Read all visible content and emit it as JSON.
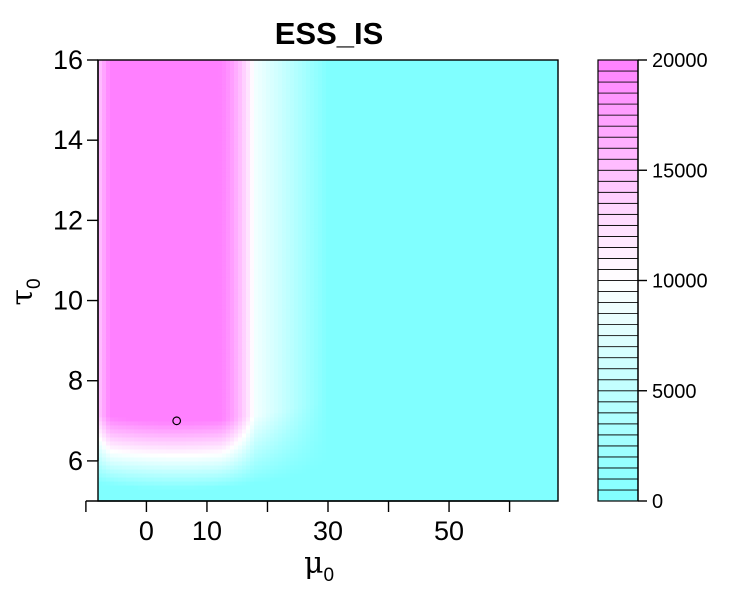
{
  "chart_data": {
    "type": "heatmap",
    "title": "ESS_IS",
    "xlabel": {
      "symbol": "μ",
      "subscript": "0"
    },
    "ylabel": {
      "symbol": "τ",
      "subscript": "0"
    },
    "xlim": [
      -8,
      68
    ],
    "ylim": [
      5,
      16
    ],
    "x_ticks": [
      -10,
      0,
      10,
      20,
      30,
      40,
      50,
      60
    ],
    "x_tick_labels": [
      "",
      "0",
      "10",
      "",
      "30",
      "",
      "50",
      ""
    ],
    "y_ticks": [
      6,
      8,
      10,
      12,
      14,
      16
    ],
    "y_tick_labels": [
      "6",
      "8",
      "10",
      "12",
      "14",
      "16"
    ],
    "z_range": [
      0,
      20000
    ],
    "colorbar_ticks": [
      0,
      5000,
      10000,
      15000,
      20000
    ],
    "colorbar_tick_labels": [
      "0",
      "5000",
      "10000",
      "15000",
      "20000"
    ],
    "colorbar_levels": 40,
    "colors": {
      "low": "#80ffff",
      "mid": "#ffffff",
      "high": "#ff80ff"
    },
    "field_description": {
      "high_region_x": [
        -6,
        18
      ],
      "high_region_y_min": 6.2,
      "peak_x": 5,
      "saturation_value": 20000
    },
    "marked_point": {
      "x": 5,
      "y": 7
    }
  }
}
